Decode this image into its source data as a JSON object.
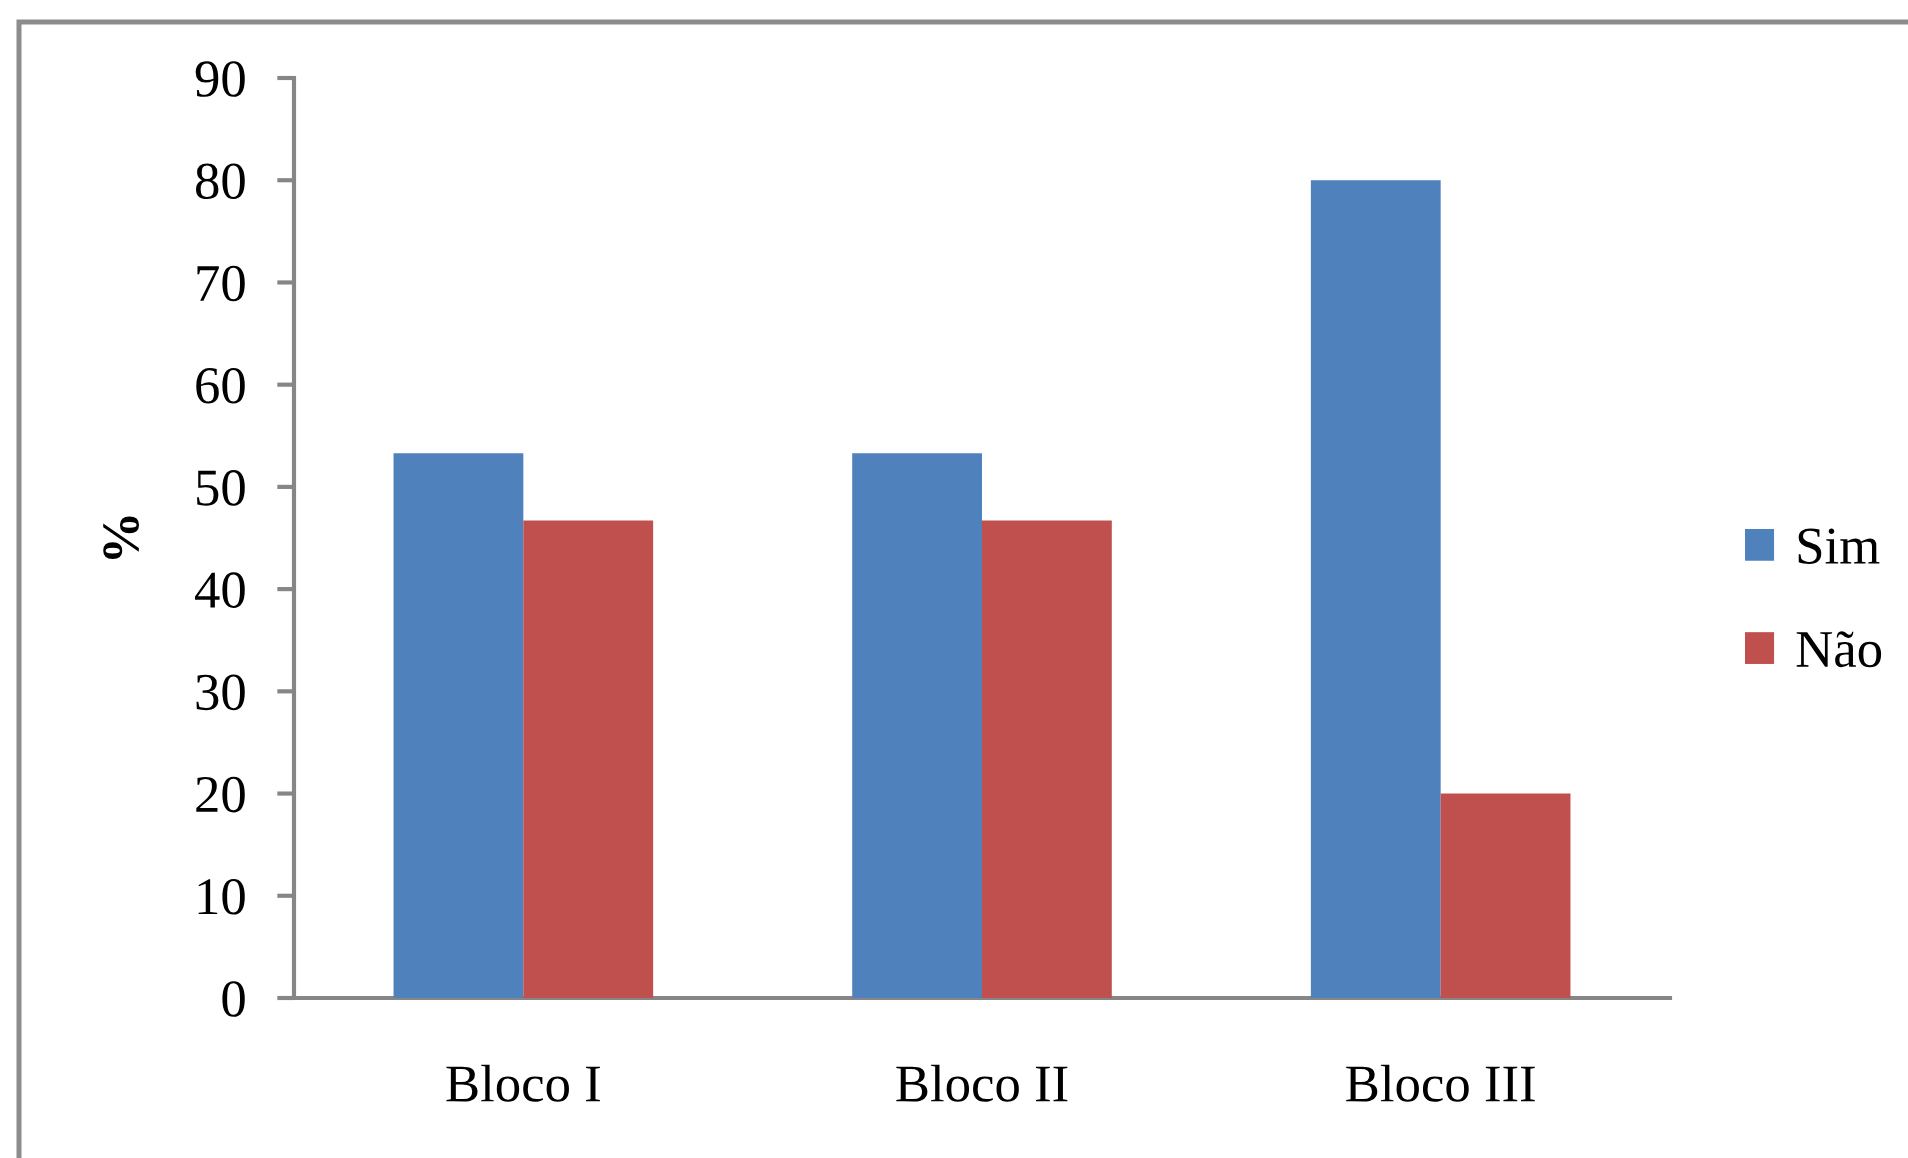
{
  "chart_data": {
    "type": "bar",
    "categories": [
      "Bloco I",
      "Bloco II",
      "Bloco III"
    ],
    "series": [
      {
        "name": "Sim",
        "color": "#4f81bd",
        "values": [
          53.3,
          53.3,
          80
        ]
      },
      {
        "name": "Não",
        "color": "#c0504d",
        "values": [
          46.7,
          46.7,
          20
        ]
      }
    ],
    "ylabel": "%",
    "ylim": [
      0,
      90
    ],
    "yticks": [
      0,
      10,
      20,
      30,
      40,
      50,
      60,
      70,
      80,
      90
    ],
    "grid": false,
    "legend": "right"
  }
}
